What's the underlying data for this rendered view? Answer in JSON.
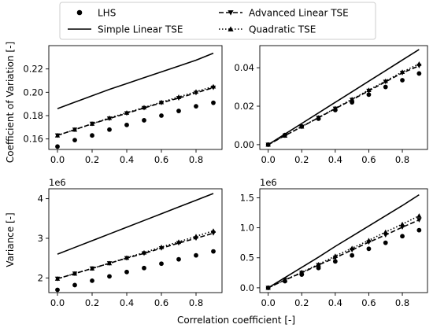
{
  "legend": {
    "entries": [
      {
        "label": "LHS",
        "style": "markers",
        "marker": "circle"
      },
      {
        "label": "Simple Linear TSE",
        "style": "solid",
        "marker": "none"
      },
      {
        "label": "Advanced Linear TSE",
        "style": "dashed",
        "marker": "triangle-down"
      },
      {
        "label": "Quadratic TSE",
        "style": "dotted",
        "marker": "triangle-up"
      }
    ]
  },
  "xlabel": "Correlation coefficient [-]",
  "row_labels": [
    "Coefficient of Variation [-]",
    "Variance [-]"
  ],
  "chart_data": [
    {
      "type": "line",
      "panel": "top-left",
      "x": [
        0.0,
        0.1,
        0.2,
        0.3,
        0.4,
        0.5,
        0.6,
        0.7,
        0.8,
        0.9
      ],
      "xlim": [
        -0.05,
        0.95
      ],
      "xticks": [
        "0.0",
        "0.2",
        "0.4",
        "0.6",
        "0.8"
      ],
      "xtick_values": [
        0.0,
        0.2,
        0.4,
        0.6,
        0.8
      ],
      "ylim": [
        0.151,
        0.24
      ],
      "yticks": [
        "0.16",
        "0.18",
        "0.20",
        "0.22"
      ],
      "ytick_values": [
        0.16,
        0.18,
        0.2,
        0.22
      ],
      "offset_label": "",
      "series": [
        {
          "name": "LHS",
          "values": [
            0.1535,
            0.159,
            0.163,
            0.168,
            0.172,
            0.176,
            0.18,
            0.184,
            0.188,
            0.191
          ]
        },
        {
          "name": "Simple Linear TSE",
          "values": [
            0.186,
            0.1915,
            0.197,
            0.2025,
            0.2075,
            0.2125,
            0.2175,
            0.2225,
            0.2275,
            0.2335
          ]
        },
        {
          "name": "Advanced Linear TSE",
          "values": [
            0.163,
            0.168,
            0.173,
            0.1775,
            0.182,
            0.1865,
            0.191,
            0.195,
            0.1995,
            0.204
          ]
        },
        {
          "name": "Quadratic TSE",
          "values": [
            0.163,
            0.168,
            0.173,
            0.178,
            0.1825,
            0.187,
            0.1915,
            0.196,
            0.2005,
            0.205
          ]
        }
      ]
    },
    {
      "type": "line",
      "panel": "top-right",
      "x": [
        0.0,
        0.1,
        0.2,
        0.3,
        0.4,
        0.5,
        0.6,
        0.7,
        0.8,
        0.9
      ],
      "xlim": [
        -0.05,
        0.95
      ],
      "xticks": [
        "0.0",
        "0.2",
        "0.4",
        "0.6",
        "0.8"
      ],
      "xtick_values": [
        0.0,
        0.2,
        0.4,
        0.6,
        0.8
      ],
      "ylim": [
        -0.0025,
        0.0515
      ],
      "yticks": [
        "0.00",
        "0.02",
        "0.04"
      ],
      "ytick_values": [
        0.0,
        0.02,
        0.04
      ],
      "offset_label": "",
      "series": [
        {
          "name": "LHS",
          "values": [
            0.0,
            0.005,
            0.0095,
            0.0135,
            0.018,
            0.022,
            0.026,
            0.03,
            0.0335,
            0.037
          ]
        },
        {
          "name": "Simple Linear TSE",
          "values": [
            0.0,
            0.0055,
            0.011,
            0.0165,
            0.022,
            0.0275,
            0.033,
            0.0385,
            0.044,
            0.0495
          ]
        },
        {
          "name": "Advanced Linear TSE",
          "values": [
            0.0,
            0.0047,
            0.0093,
            0.014,
            0.0187,
            0.0233,
            0.028,
            0.0327,
            0.0373,
            0.041
          ]
        },
        {
          "name": "Quadratic TSE",
          "values": [
            0.0,
            0.0047,
            0.0094,
            0.0141,
            0.0189,
            0.0236,
            0.0284,
            0.0331,
            0.0378,
            0.042
          ]
        }
      ]
    },
    {
      "type": "line",
      "panel": "bottom-left",
      "x": [
        0.0,
        0.1,
        0.2,
        0.3,
        0.4,
        0.5,
        0.6,
        0.7,
        0.8,
        0.9
      ],
      "xlim": [
        -0.05,
        0.95
      ],
      "xticks": [
        "0.0",
        "0.2",
        "0.4",
        "0.6",
        "0.8"
      ],
      "xtick_values": [
        0.0,
        0.2,
        0.4,
        0.6,
        0.8
      ],
      "ylim": [
        1.63,
        4.25
      ],
      "yticks": [
        "2",
        "3",
        "4"
      ],
      "ytick_values": [
        2,
        3,
        4
      ],
      "offset_label": "1e6",
      "series": [
        {
          "name": "LHS",
          "values": [
            1.7,
            1.82,
            1.93,
            2.04,
            2.15,
            2.25,
            2.36,
            2.47,
            2.57,
            2.67
          ]
        },
        {
          "name": "Simple Linear TSE",
          "values": [
            2.6,
            2.77,
            2.94,
            3.11,
            3.28,
            3.45,
            3.62,
            3.79,
            3.96,
            4.13
          ]
        },
        {
          "name": "Advanced Linear TSE",
          "values": [
            1.98,
            2.11,
            2.24,
            2.37,
            2.5,
            2.62,
            2.75,
            2.88,
            3.0,
            3.13
          ]
        },
        {
          "name": "Quadratic TSE",
          "values": [
            1.98,
            2.11,
            2.24,
            2.37,
            2.51,
            2.64,
            2.78,
            2.91,
            3.05,
            3.19
          ]
        }
      ]
    },
    {
      "type": "line",
      "panel": "bottom-right",
      "x": [
        0.0,
        0.1,
        0.2,
        0.3,
        0.4,
        0.5,
        0.6,
        0.7,
        0.8,
        0.9
      ],
      "xlim": [
        -0.05,
        0.95
      ],
      "xticks": [
        "0.0",
        "0.2",
        "0.4",
        "0.6",
        "0.8"
      ],
      "xtick_values": [
        0.0,
        0.2,
        0.4,
        0.6,
        0.8
      ],
      "ylim": [
        -0.08,
        1.65
      ],
      "yticks": [
        "0.0",
        "0.5",
        "1.0",
        "1.5"
      ],
      "ytick_values": [
        0.0,
        0.5,
        1.0,
        1.5
      ],
      "offset_label": "1e6",
      "series": [
        {
          "name": "LHS",
          "values": [
            0.0,
            0.11,
            0.22,
            0.33,
            0.44,
            0.54,
            0.65,
            0.75,
            0.86,
            0.96
          ]
        },
        {
          "name": "Simple Linear TSE",
          "values": [
            0.0,
            0.17,
            0.34,
            0.51,
            0.69,
            0.86,
            1.03,
            1.2,
            1.37,
            1.55
          ]
        },
        {
          "name": "Advanced Linear TSE",
          "values": [
            0.0,
            0.13,
            0.25,
            0.38,
            0.5,
            0.63,
            0.76,
            0.88,
            1.01,
            1.13
          ]
        },
        {
          "name": "Quadratic TSE",
          "values": [
            0.0,
            0.13,
            0.26,
            0.39,
            0.53,
            0.66,
            0.79,
            0.93,
            1.06,
            1.2
          ]
        }
      ]
    }
  ]
}
